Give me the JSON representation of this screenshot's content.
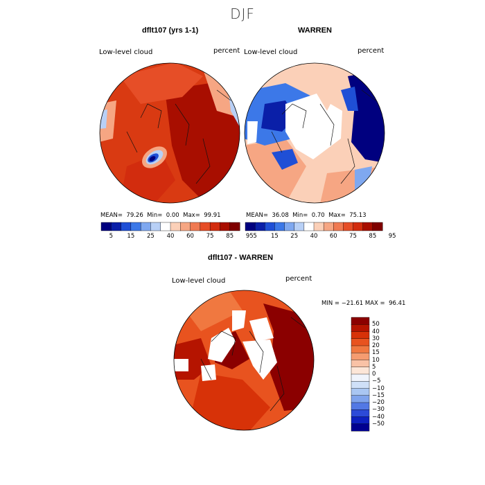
{
  "figure_title": "DJF",
  "panels": [
    {
      "title": "dflt107 (yrs 1-1)",
      "field_label": "Low-level cloud",
      "unit_label": "percent",
      "stats": {
        "mean_label": "MEAN=",
        "mean": "79.26",
        "min_label": "Min=",
        "min": "0.00",
        "max_label": "Max=",
        "max": "99.91"
      }
    },
    {
      "title": "WARREN",
      "field_label": "Low-level cloud",
      "unit_label": "percent",
      "stats": {
        "mean_label": "MEAN=",
        "mean": "36.08",
        "min_label": "Min=",
        "min": "0.70",
        "max_label": "Max=",
        "max": "75.13"
      }
    }
  ],
  "abs_colorbar": {
    "colors": [
      "#00007f",
      "#0a1fa8",
      "#1f4fd6",
      "#3c78e8",
      "#7fa8f0",
      "#b8d0f6",
      "#ffffff",
      "#fbd0b8",
      "#f6a683",
      "#f07a52",
      "#e64e27",
      "#d22c0e",
      "#a80e00",
      "#7f0000"
    ],
    "tick_labels": [
      "5",
      "15",
      "25",
      "40",
      "60",
      "75",
      "85",
      "95"
    ]
  },
  "diff_panel": {
    "title": "dflt107 - WARREN",
    "field_label": "Low-level cloud",
    "unit_label": "percent",
    "minmax": "MIN = −21.61 MAX =  96.41",
    "colorbar": {
      "colors": [
        "#8b0000",
        "#b51400",
        "#d73208",
        "#e8531f",
        "#f07840",
        "#f59c70",
        "#f9c2a6",
        "#fce6d8",
        "#f0f4fc",
        "#cfe0f8",
        "#a9c6f2",
        "#7fa3ec",
        "#5278e4",
        "#2c4ad8",
        "#0d20c0",
        "#000090"
      ],
      "tick_labels": [
        "50",
        "40",
        "30",
        "20",
        "15",
        "10",
        "5",
        "0",
        "−5",
        "−10",
        "−15",
        "−20",
        "−30",
        "−40",
        "−50"
      ]
    }
  }
}
